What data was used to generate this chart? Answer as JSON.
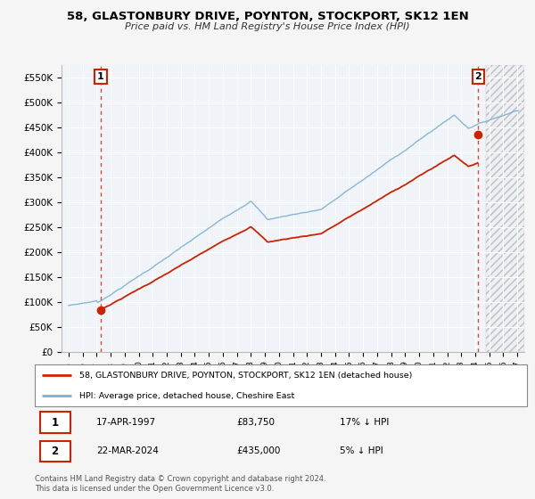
{
  "title": "58, GLASTONBURY DRIVE, POYNTON, STOCKPORT, SK12 1EN",
  "subtitle": "Price paid vs. HM Land Registry's House Price Index (HPI)",
  "background_color": "#f5f5f5",
  "plot_background": "#f0f4f8",
  "hpi_color": "#7ab0d4",
  "sale_color": "#cc2200",
  "sale1_x": 1997.29,
  "sale1_price": 83750,
  "sale1_label": "17-APR-1997",
  "sale1_pct": "17% ↓ HPI",
  "sale2_x": 2024.22,
  "sale2_price": 435000,
  "sale2_label": "22-MAR-2024",
  "sale2_pct": "5% ↓ HPI",
  "legend_line1": "58, GLASTONBURY DRIVE, POYNTON, STOCKPORT, SK12 1EN (detached house)",
  "legend_line2": "HPI: Average price, detached house, Cheshire East",
  "footnote": "Contains HM Land Registry data © Crown copyright and database right 2024.\nThis data is licensed under the Open Government Licence v3.0.",
  "xmin": 1994.5,
  "xmax": 2027.5,
  "ymin": 0,
  "ymax": 575000,
  "yticks": [
    0,
    50000,
    100000,
    150000,
    200000,
    250000,
    300000,
    350000,
    400000,
    450000,
    500000,
    550000
  ],
  "ytick_labels": [
    "£0",
    "£50K",
    "£100K",
    "£150K",
    "£200K",
    "£250K",
    "£300K",
    "£350K",
    "£400K",
    "£450K",
    "£500K",
    "£550K"
  ],
  "xticks": [
    1995,
    1996,
    1997,
    1998,
    1999,
    2000,
    2001,
    2002,
    2003,
    2004,
    2005,
    2006,
    2007,
    2008,
    2009,
    2010,
    2011,
    2012,
    2013,
    2014,
    2015,
    2016,
    2017,
    2018,
    2019,
    2020,
    2021,
    2022,
    2023,
    2024,
    2025,
    2026,
    2027
  ],
  "hatch_start": 2024.75
}
